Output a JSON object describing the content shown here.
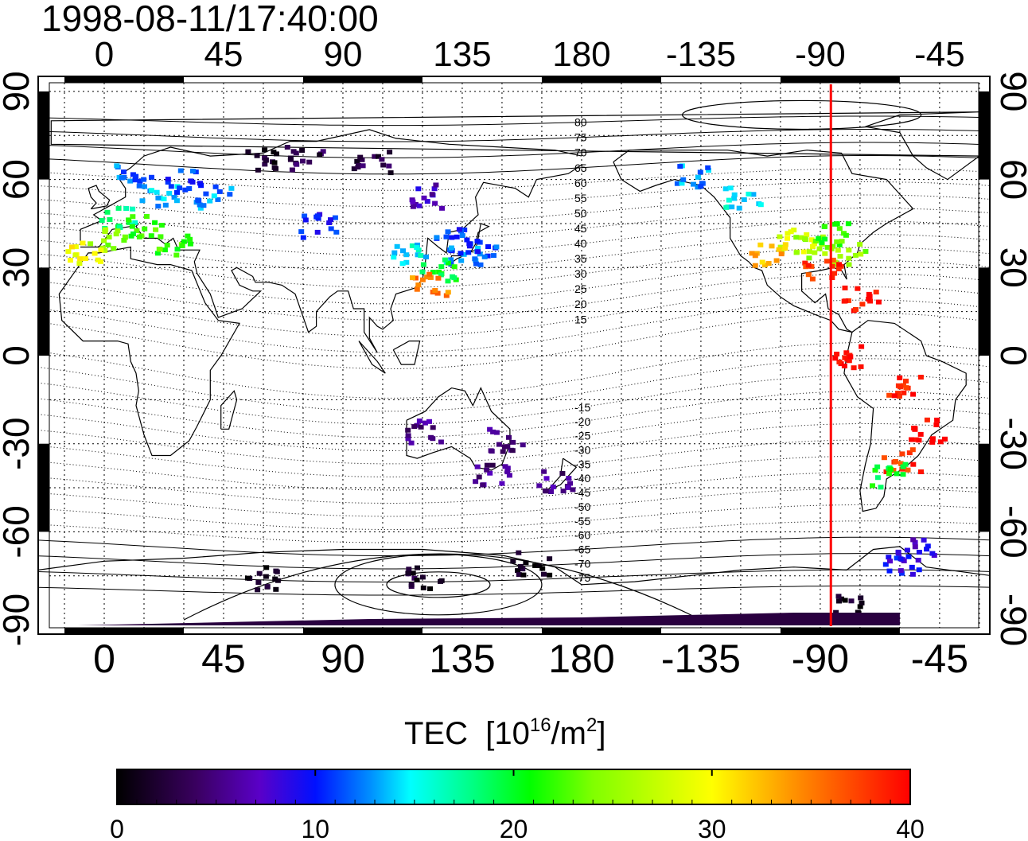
{
  "timestamp": "1998-08-11/17:40:00",
  "colorbar": {
    "title_prefix": "TEC",
    "title_unit_base": "[10",
    "title_unit_exp": "16",
    "title_unit_mid": "/m",
    "title_unit_exp2": "2",
    "title_unit_end": "]",
    "min": 0,
    "max": 40,
    "tick_values": [
      0,
      10,
      20,
      30,
      40
    ],
    "tick_labels": [
      "0",
      "10",
      "20",
      "30",
      "40"
    ],
    "colors": [
      "#000000",
      "#3a0060",
      "#5a00c8",
      "#0010ff",
      "#0090ff",
      "#00ffff",
      "#00ff60",
      "#60ff00",
      "#ffff00",
      "#ff8000",
      "#ff0000"
    ]
  },
  "map": {
    "projection": "cylindrical",
    "lon_range": [
      -25,
      335
    ],
    "lat_range": [
      -90,
      90
    ],
    "lon_ticks": [
      "0",
      "45",
      "90",
      "135",
      "180",
      "-135",
      "-90",
      "-45"
    ],
    "lat_ticks": [
      "90",
      "60",
      "30",
      "0",
      "-30",
      "-60",
      "-90"
    ],
    "meridian_marker_lon": -86,
    "meridian_marker_color": "#ff0000",
    "magnetic_latitude_labels": [
      "80",
      "75",
      "70",
      "65",
      "60",
      "55",
      "50",
      "45",
      "40",
      "35",
      "30",
      "25",
      "20",
      "15",
      "-15",
      "-20",
      "-25",
      "-30",
      "-35",
      "-40",
      "-45",
      "-50",
      "-55",
      "-60",
      "-65",
      "-70",
      "-75"
    ]
  },
  "chart_data": {
    "type": "heatmap",
    "title": "1998-08-11/17:40:00",
    "colorbar_label": "TEC [10^16/m^2]",
    "value_range": [
      0,
      40
    ],
    "points_lon_lat_tec": [
      [
        10,
        62,
        12
      ],
      [
        20,
        55,
        14
      ],
      [
        5,
        48,
        18
      ],
      [
        15,
        45,
        22
      ],
      [
        0,
        40,
        25
      ],
      [
        -8,
        36,
        30
      ],
      [
        25,
        38,
        22
      ],
      [
        30,
        60,
        11
      ],
      [
        40,
        55,
        13
      ],
      [
        60,
        68,
        2
      ],
      [
        75,
        68,
        3
      ],
      [
        100,
        67,
        3
      ],
      [
        120,
        55,
        7
      ],
      [
        130,
        40,
        11
      ],
      [
        135,
        35,
        13
      ],
      [
        125,
        30,
        20
      ],
      [
        122,
        25,
        35
      ],
      [
        140,
        38,
        11
      ],
      [
        115,
        35,
        15
      ],
      [
        80,
        45,
        10
      ],
      [
        -100,
        40,
        28
      ],
      [
        -110,
        35,
        33
      ],
      [
        -95,
        38,
        25
      ],
      [
        -85,
        42,
        22
      ],
      [
        -80,
        35,
        25
      ],
      [
        -90,
        30,
        38
      ],
      [
        -120,
        55,
        15
      ],
      [
        -140,
        62,
        13
      ],
      [
        -75,
        20,
        40
      ],
      [
        -80,
        0,
        40
      ],
      [
        -60,
        -10,
        39
      ],
      [
        -50,
        -25,
        40
      ],
      [
        -60,
        -35,
        38
      ],
      [
        -65,
        -40,
        20
      ],
      [
        -60,
        -70,
        9
      ],
      [
        -55,
        -65,
        8
      ],
      [
        145,
        -40,
        5
      ],
      [
        170,
        -42,
        5
      ],
      [
        120,
        -25,
        5
      ],
      [
        150,
        -28,
        5
      ],
      [
        60,
        -75,
        1
      ],
      [
        120,
        -75,
        2
      ],
      [
        160,
        -70,
        1
      ],
      [
        -80,
        -85,
        1
      ]
    ]
  }
}
